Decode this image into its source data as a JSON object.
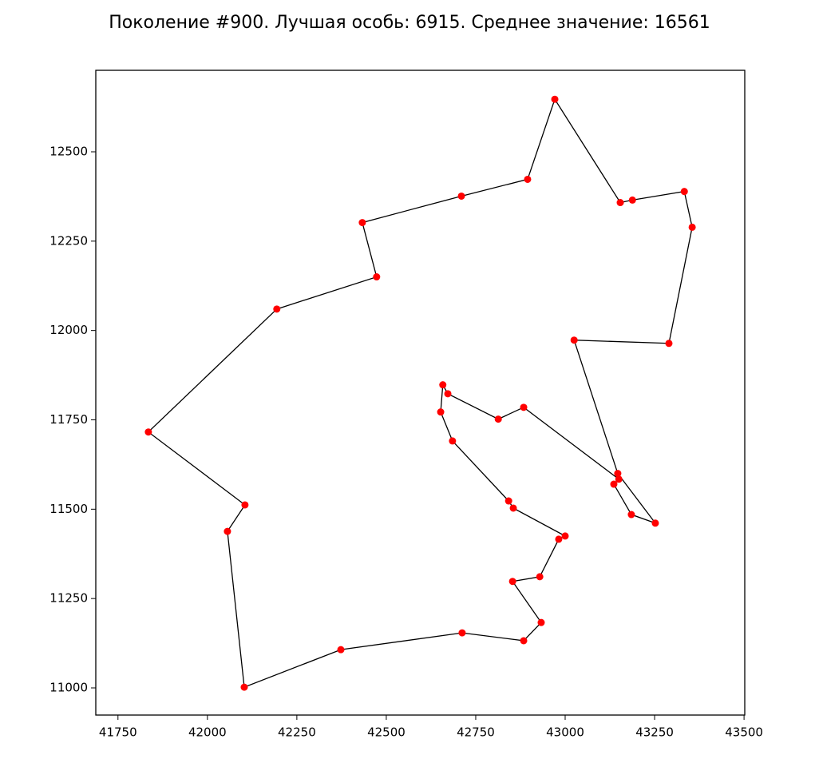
{
  "chart_data": {
    "type": "line",
    "title": "Поколение #900. Лучшая особь: 6915. Среднее значение: 16561",
    "x": [
      42971,
      43154,
      43188,
      43333,
      43355,
      43290,
      43025,
      43147,
      43252,
      43185,
      43136,
      43150,
      42884,
      42813,
      42672,
      42658,
      42652,
      42685,
      42842,
      42855,
      43000,
      42982,
      42929,
      42853,
      42933,
      42884,
      42712,
      42373,
      42103,
      42056,
      42105,
      41835,
      42194,
      42473,
      42433,
      42710,
      42895
    ],
    "values": [
      12647,
      12358,
      12365,
      12389,
      12289,
      11964,
      11973,
      11600,
      11461,
      11485,
      11570,
      11584,
      11785,
      11752,
      11823,
      11848,
      11772,
      11691,
      11523,
      11503,
      11425,
      11416,
      11311,
      11298,
      11183,
      11132,
      11154,
      11107,
      11002,
      11438,
      11512,
      11716,
      12060,
      12150,
      12302,
      12376,
      12423
    ],
    "line_color": "#000000",
    "marker_color": "#ff0000",
    "closed": true,
    "xlim": [
      41688,
      43502
    ],
    "ylim": [
      10924,
      12728
    ],
    "xticks": [
      41750,
      42000,
      42250,
      42500,
      42750,
      43000,
      43250,
      43500
    ],
    "yticks": [
      11000,
      11250,
      11500,
      11750,
      12000,
      12250,
      12500
    ]
  }
}
